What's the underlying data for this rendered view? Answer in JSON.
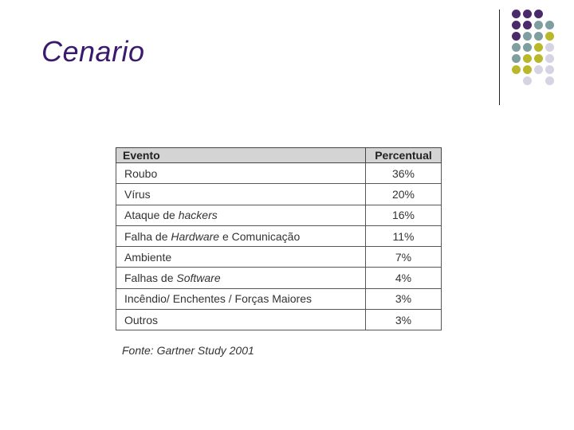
{
  "title": "Cenario",
  "table": {
    "headers": [
      "Evento",
      "Percentual"
    ],
    "rows": [
      {
        "evento": [
          {
            "t": "Roubo",
            "i": false
          }
        ],
        "percentual": "36%"
      },
      {
        "evento": [
          {
            "t": "Vírus",
            "i": false
          }
        ],
        "percentual": "20%"
      },
      {
        "evento": [
          {
            "t": "Ataque de ",
            "i": false
          },
          {
            "t": "hackers",
            "i": true
          }
        ],
        "percentual": "16%"
      },
      {
        "evento": [
          {
            "t": "Falha de ",
            "i": false
          },
          {
            "t": "Hardware",
            "i": true
          },
          {
            "t": " e Comunicação",
            "i": false
          }
        ],
        "percentual": "11%"
      },
      {
        "evento": [
          {
            "t": "Ambiente",
            "i": false
          }
        ],
        "percentual": "7%"
      },
      {
        "evento": [
          {
            "t": "Falhas de ",
            "i": false
          },
          {
            "t": "Software",
            "i": true
          }
        ],
        "percentual": "4%"
      },
      {
        "evento": [
          {
            "t": "Incêndio/ Enchentes / Forças Maiores",
            "i": false
          }
        ],
        "percentual": "3%"
      },
      {
        "evento": [
          {
            "t": "Outros",
            "i": false
          }
        ],
        "percentual": "3%"
      }
    ]
  },
  "source": "Fonte: Gartner Study  2001",
  "colors": {
    "title": "#3b1a6e",
    "dot_purple": "#4a2a6a",
    "dot_teal": "#7f9ea0",
    "dot_olive": "#b8b82a",
    "dot_lavender": "#d6d4e3"
  }
}
